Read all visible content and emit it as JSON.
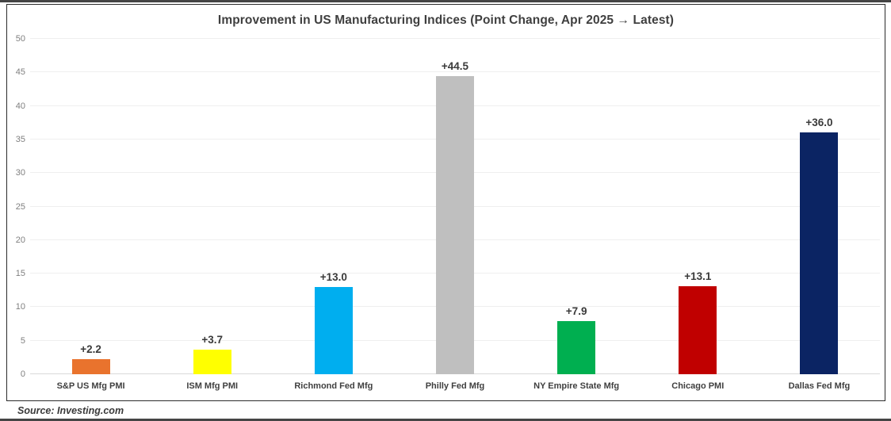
{
  "chart_data": {
    "type": "bar",
    "title": "Improvement in US Manufacturing Indices (Point Change, Apr 2025 → Latest)",
    "categories": [
      "S&P US Mfg PMI",
      "ISM Mfg PMI",
      "Richmond Fed Mfg",
      "Philly Fed Mfg",
      "NY Empire State Mfg",
      "Chicago PMI",
      "Dallas Fed Mfg"
    ],
    "values": [
      2.2,
      3.7,
      13.0,
      44.5,
      7.9,
      13.1,
      36.0
    ],
    "value_labels": [
      "+2.2",
      "+3.7",
      "+13.0",
      "+44.5",
      "+7.9",
      "+13.1",
      "+36.0"
    ],
    "bar_colors": [
      "#E9732D",
      "#FFFF00",
      "#00AEEF",
      "#BFBFBF",
      "#00AF50",
      "#C00000",
      "#0B2463"
    ],
    "xlabel": "",
    "ylabel": "",
    "ylim": [
      0,
      50
    ],
    "yticks": [
      0,
      5,
      10,
      15,
      20,
      25,
      30,
      35,
      40,
      45,
      50
    ],
    "grid": "horizontal",
    "legend": "none",
    "source": "Source: Investing.com"
  }
}
